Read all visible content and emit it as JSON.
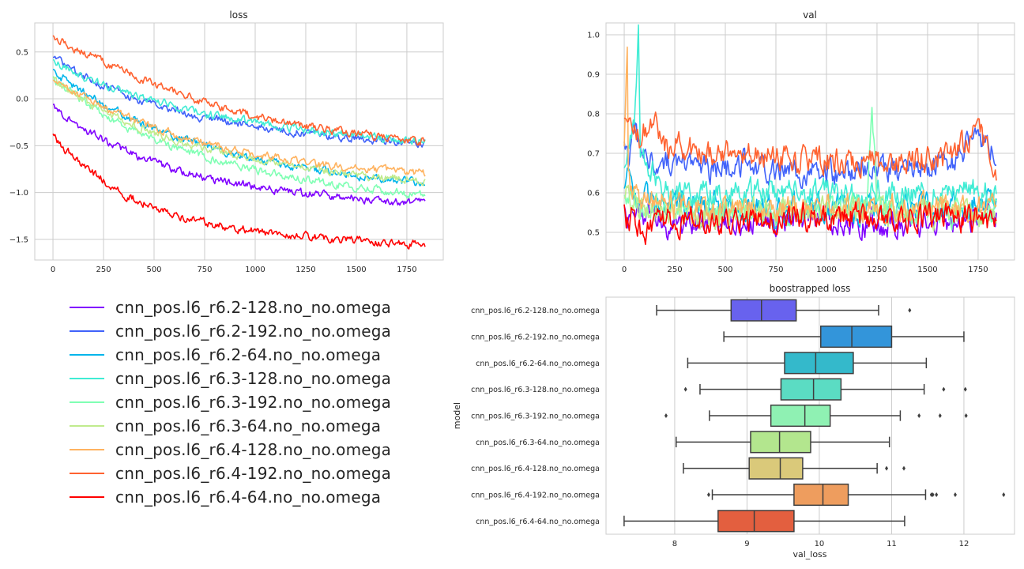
{
  "series_colors": [
    "#8000ff",
    "#4062fa",
    "#00b5eb",
    "#40ecd4",
    "#80ffb4",
    "#c0eb8d",
    "#ffb360",
    "#ff6230",
    "#ff0000"
  ],
  "legend": {
    "entries": [
      "cnn_pos.l6_r6.2-128.no_no.omega",
      "cnn_pos.l6_r6.2-192.no_no.omega",
      "cnn_pos.l6_r6.2-64.no_no.omega",
      "cnn_pos.l6_r6.3-128.no_no.omega",
      "cnn_pos.l6_r6.3-192.no_no.omega",
      "cnn_pos.l6_r6.3-64.no_no.omega",
      "cnn_pos.l6_r6.4-128.no_no.omega",
      "cnn_pos.l6_r6.4-192.no_no.omega",
      "cnn_pos.l6_r6.4-64.no_no.omega"
    ]
  },
  "chart_data": [
    {
      "type": "line",
      "title": "loss",
      "xlabel": "",
      "ylabel": "",
      "xlim": [
        -90,
        1930
      ],
      "ylim": [
        -1.72,
        0.81
      ],
      "xticks": [
        0,
        250,
        500,
        750,
        1000,
        1250,
        1500,
        1750
      ],
      "xtick_labels": [
        "0",
        "250",
        "500",
        "750",
        "1000",
        "1250",
        "1500",
        "1750"
      ],
      "yticks": [
        0.5,
        0.0,
        -0.5,
        -1.0,
        -1.5
      ],
      "ytick_labels": [
        "0.5",
        "0.0",
        "−0.5",
        "−1.0",
        "−1.5"
      ],
      "grid": true,
      "series": [
        {
          "x": [
            0,
            100,
            200,
            300,
            400,
            500,
            600,
            700,
            800,
            900,
            1000,
            1100,
            1200,
            1300,
            1400,
            1500,
            1600,
            1700,
            1840
          ],
          "values": [
            -0.07,
            -0.25,
            -0.38,
            -0.5,
            -0.6,
            -0.68,
            -0.75,
            -0.81,
            -0.86,
            -0.9,
            -0.94,
            -0.97,
            -1.0,
            -1.02,
            -1.04,
            -1.06,
            -1.08,
            -1.1,
            -1.11
          ]
        },
        {
          "x": [
            0,
            100,
            200,
            300,
            400,
            500,
            600,
            700,
            800,
            900,
            1000,
            1100,
            1200,
            1300,
            1400,
            1500,
            1600,
            1700,
            1840
          ],
          "values": [
            0.43,
            0.3,
            0.18,
            0.09,
            0.0,
            -0.07,
            -0.13,
            -0.18,
            -0.22,
            -0.26,
            -0.29,
            -0.32,
            -0.35,
            -0.38,
            -0.4,
            -0.42,
            -0.44,
            -0.46,
            -0.48
          ]
        },
        {
          "x": [
            0,
            100,
            200,
            300,
            400,
            500,
            600,
            700,
            800,
            900,
            1000,
            1100,
            1200,
            1300,
            1400,
            1500,
            1600,
            1700,
            1840
          ],
          "values": [
            0.3,
            0.14,
            0.01,
            -0.11,
            -0.22,
            -0.32,
            -0.4,
            -0.47,
            -0.53,
            -0.59,
            -0.64,
            -0.68,
            -0.72,
            -0.76,
            -0.79,
            -0.82,
            -0.85,
            -0.87,
            -0.9
          ]
        },
        {
          "x": [
            0,
            100,
            200,
            300,
            400,
            500,
            600,
            700,
            800,
            900,
            1000,
            1100,
            1200,
            1300,
            1400,
            1500,
            1600,
            1700,
            1840
          ],
          "values": [
            0.4,
            0.29,
            0.19,
            0.11,
            0.04,
            -0.02,
            -0.08,
            -0.13,
            -0.18,
            -0.22,
            -0.26,
            -0.29,
            -0.32,
            -0.35,
            -0.37,
            -0.39,
            -0.41,
            -0.43,
            -0.45
          ]
        },
        {
          "x": [
            0,
            100,
            200,
            300,
            400,
            500,
            600,
            700,
            800,
            900,
            1000,
            1100,
            1200,
            1300,
            1400,
            1500,
            1600,
            1700,
            1840
          ],
          "values": [
            0.22,
            0.05,
            -0.1,
            -0.23,
            -0.34,
            -0.44,
            -0.52,
            -0.59,
            -0.65,
            -0.71,
            -0.76,
            -0.8,
            -0.84,
            -0.88,
            -0.91,
            -0.94,
            -0.97,
            -1.0,
            -1.02
          ]
        },
        {
          "x": [
            0,
            100,
            200,
            300,
            400,
            500,
            600,
            700,
            800,
            900,
            1000,
            1100,
            1200,
            1300,
            1400,
            1500,
            1600,
            1700,
            1840
          ],
          "values": [
            0.21,
            0.06,
            -0.07,
            -0.18,
            -0.28,
            -0.36,
            -0.43,
            -0.49,
            -0.55,
            -0.6,
            -0.64,
            -0.68,
            -0.72,
            -0.75,
            -0.78,
            -0.81,
            -0.83,
            -0.85,
            -0.87
          ]
        },
        {
          "x": [
            0,
            100,
            200,
            300,
            400,
            500,
            600,
            700,
            800,
            900,
            1000,
            1100,
            1200,
            1300,
            1400,
            1500,
            1600,
            1700,
            1840
          ],
          "values": [
            0.18,
            0.07,
            -0.04,
            -0.14,
            -0.23,
            -0.31,
            -0.38,
            -0.44,
            -0.5,
            -0.55,
            -0.59,
            -0.63,
            -0.66,
            -0.69,
            -0.72,
            -0.74,
            -0.76,
            -0.78,
            -0.8
          ]
        },
        {
          "x": [
            0,
            100,
            200,
            300,
            400,
            500,
            600,
            700,
            800,
            900,
            1000,
            1100,
            1200,
            1300,
            1400,
            1500,
            1600,
            1700,
            1840
          ],
          "values": [
            0.65,
            0.55,
            0.45,
            0.35,
            0.25,
            0.16,
            0.08,
            0.0,
            -0.07,
            -0.13,
            -0.18,
            -0.23,
            -0.27,
            -0.31,
            -0.34,
            -0.37,
            -0.4,
            -0.43,
            -0.46
          ]
        },
        {
          "x": [
            0,
            100,
            200,
            300,
            400,
            500,
            600,
            700,
            800,
            900,
            1000,
            1100,
            1200,
            1300,
            1400,
            1500,
            1600,
            1700,
            1840
          ],
          "values": [
            -0.4,
            -0.62,
            -0.8,
            -0.95,
            -1.07,
            -1.16,
            -1.23,
            -1.29,
            -1.34,
            -1.38,
            -1.41,
            -1.44,
            -1.46,
            -1.48,
            -1.5,
            -1.51,
            -1.53,
            -1.55,
            -1.55
          ]
        }
      ]
    },
    {
      "type": "line",
      "title": "val",
      "xlabel": "",
      "ylabel": "",
      "xlim": [
        -90,
        1930
      ],
      "ylim": [
        0.43,
        1.03
      ],
      "xticks": [
        0,
        250,
        500,
        750,
        1000,
        1250,
        1500,
        1750
      ],
      "xtick_labels": [
        "0",
        "250",
        "500",
        "750",
        "1000",
        "1250",
        "1500",
        "1750"
      ],
      "yticks": [
        1.0,
        0.9,
        0.8,
        0.7,
        0.6,
        0.5
      ],
      "ytick_labels": [
        "1.0",
        "0.9",
        "0.8",
        "0.7",
        "0.6",
        "0.5"
      ],
      "grid": true,
      "series": [
        {
          "x": [
            0,
            20,
            40,
            80,
            200,
            400,
            600,
            800,
            1000,
            1200,
            1400,
            1600,
            1840
          ],
          "values": [
            0.56,
            0.53,
            0.58,
            0.55,
            0.52,
            0.53,
            0.52,
            0.53,
            0.53,
            0.52,
            0.52,
            0.53,
            0.54
          ]
        },
        {
          "x": [
            0,
            20,
            40,
            80,
            200,
            400,
            600,
            800,
            1000,
            1200,
            1400,
            1600,
            1750,
            1840
          ],
          "values": [
            0.72,
            0.66,
            0.8,
            0.7,
            0.68,
            0.66,
            0.67,
            0.66,
            0.65,
            0.66,
            0.66,
            0.67,
            0.74,
            0.69
          ]
        },
        {
          "x": [
            0,
            20,
            40,
            80,
            200,
            400,
            600,
            800,
            1000,
            1200,
            1400,
            1600,
            1840
          ],
          "values": [
            0.6,
            0.65,
            0.62,
            0.58,
            0.57,
            0.57,
            0.56,
            0.56,
            0.56,
            0.56,
            0.56,
            0.56,
            0.57
          ]
        },
        {
          "x": [
            0,
            20,
            50,
            70,
            80,
            200,
            400,
            600,
            800,
            1000,
            1200,
            1400,
            1600,
            1840
          ],
          "values": [
            0.65,
            0.7,
            0.8,
            1.0,
            0.7,
            0.61,
            0.6,
            0.6,
            0.6,
            0.6,
            0.6,
            0.6,
            0.6,
            0.6
          ]
        },
        {
          "x": [
            0,
            20,
            40,
            80,
            200,
            400,
            600,
            800,
            1000,
            1200,
            1225,
            1250,
            1400,
            1600,
            1840
          ],
          "values": [
            0.58,
            0.6,
            0.56,
            0.56,
            0.55,
            0.55,
            0.55,
            0.55,
            0.55,
            0.56,
            0.85,
            0.56,
            0.55,
            0.55,
            0.55
          ]
        },
        {
          "x": [
            0,
            20,
            40,
            80,
            200,
            400,
            600,
            800,
            1000,
            1200,
            1400,
            1600,
            1840
          ],
          "values": [
            0.57,
            0.62,
            0.56,
            0.56,
            0.55,
            0.55,
            0.55,
            0.55,
            0.55,
            0.55,
            0.55,
            0.55,
            0.55
          ]
        },
        {
          "x": [
            0,
            15,
            20,
            30,
            80,
            200,
            400,
            600,
            800,
            1000,
            1200,
            1400,
            1600,
            1840
          ],
          "values": [
            0.7,
            0.98,
            0.65,
            0.6,
            0.58,
            0.57,
            0.56,
            0.56,
            0.56,
            0.56,
            0.56,
            0.56,
            0.56,
            0.56
          ]
        },
        {
          "x": [
            0,
            20,
            40,
            80,
            150,
            200,
            400,
            600,
            800,
            1000,
            1200,
            1400,
            1600,
            1750,
            1840
          ],
          "values": [
            0.77,
            0.82,
            0.78,
            0.74,
            0.8,
            0.72,
            0.7,
            0.69,
            0.69,
            0.68,
            0.68,
            0.68,
            0.69,
            0.76,
            0.66
          ]
        },
        {
          "x": [
            0,
            20,
            40,
            80,
            200,
            400,
            600,
            800,
            1000,
            1200,
            1400,
            1600,
            1840
          ],
          "values": [
            0.55,
            0.52,
            0.55,
            0.5,
            0.53,
            0.53,
            0.53,
            0.54,
            0.54,
            0.54,
            0.54,
            0.54,
            0.52
          ]
        }
      ]
    },
    {
      "type": "box",
      "title": "boostrapped loss",
      "xlabel": "val_loss",
      "ylabel": "model",
      "xlim": [
        7.05,
        12.7
      ],
      "xticks": [
        8,
        9,
        10,
        11,
        12
      ],
      "xtick_labels": [
        "8",
        "9",
        "10",
        "11",
        "12"
      ],
      "grid": true,
      "orientation": "horizontal",
      "categories": [
        "cnn_pos.l6_r6.2-128.no_no.omega",
        "cnn_pos.l6_r6.2-192.no_no.omega",
        "cnn_pos.l6_r6.2-64.no_no.omega",
        "cnn_pos.l6_r6.3-128.no_no.omega",
        "cnn_pos.l6_r6.3-192.no_no.omega",
        "cnn_pos.l6_r6.3-64.no_no.omega",
        "cnn_pos.l6_r6.4-128.no_no.omega",
        "cnn_pos.l6_r6.4-192.no_no.omega",
        "cnn_pos.l6_r6.4-64.no_no.omega"
      ],
      "box_colors": [
        "#6862ee",
        "#3395da",
        "#34b9cb",
        "#5bdcc3",
        "#8ff1b3",
        "#b3e68e",
        "#dac97a",
        "#ee9d5e",
        "#e35f3f"
      ],
      "boxes": [
        {
          "whislo": 7.75,
          "q1": 8.78,
          "med": 9.2,
          "q3": 9.68,
          "whishi": 10.82,
          "fliers": [
            11.25
          ]
        },
        {
          "whislo": 8.68,
          "q1": 10.02,
          "med": 10.45,
          "q3": 11.0,
          "whishi": 12.0,
          "fliers": []
        },
        {
          "whislo": 8.18,
          "q1": 9.52,
          "med": 9.95,
          "q3": 10.47,
          "whishi": 11.48,
          "fliers": []
        },
        {
          "whislo": 8.35,
          "q1": 9.47,
          "med": 9.92,
          "q3": 10.3,
          "whishi": 11.45,
          "fliers": [
            8.15,
            11.72,
            12.02
          ]
        },
        {
          "whislo": 8.48,
          "q1": 9.33,
          "med": 9.8,
          "q3": 10.15,
          "whishi": 11.12,
          "fliers": [
            7.88,
            11.38,
            11.67,
            12.03
          ]
        },
        {
          "whislo": 8.02,
          "q1": 9.05,
          "med": 9.45,
          "q3": 9.88,
          "whishi": 10.97,
          "fliers": []
        },
        {
          "whislo": 8.12,
          "q1": 9.03,
          "med": 9.46,
          "q3": 9.77,
          "whishi": 10.8,
          "fliers": [
            10.93,
            11.17
          ]
        },
        {
          "whislo": 8.52,
          "q1": 9.65,
          "med": 10.05,
          "q3": 10.4,
          "whishi": 11.47,
          "fliers": [
            8.47,
            11.55,
            11.57,
            11.62,
            11.88,
            12.55
          ]
        },
        {
          "whislo": 7.3,
          "q1": 8.6,
          "med": 9.1,
          "q3": 9.65,
          "whishi": 11.18,
          "fliers": []
        }
      ]
    }
  ]
}
